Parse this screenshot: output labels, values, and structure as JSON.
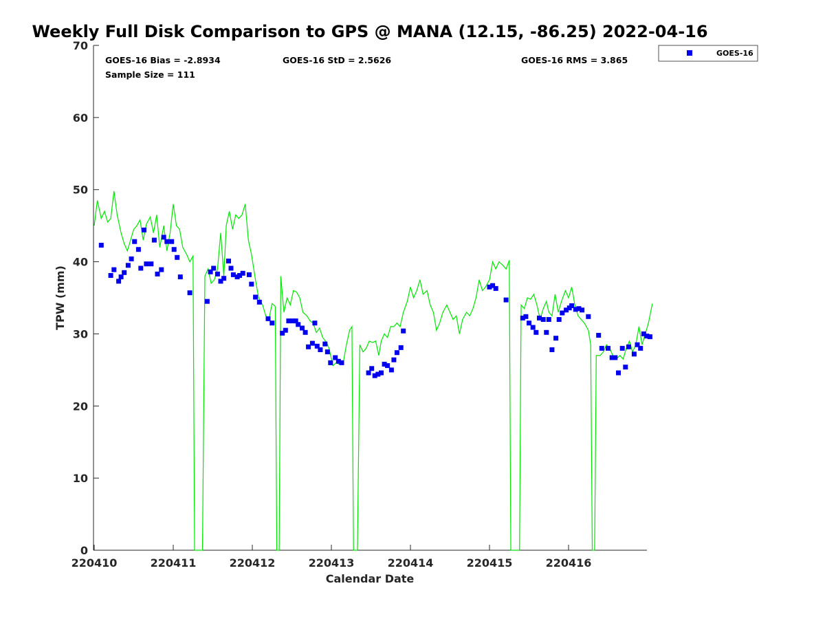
{
  "chart_data": {
    "type": "scatter",
    "title": "Weekly Full Disk Comparison to GPS @ MANA (12.15, -86.25) 2022-04-16",
    "xlabel": "Calendar Date",
    "ylabel": "TPW (mm)",
    "xlim": [
      220410,
      220417
    ],
    "ylim": [
      0,
      70
    ],
    "x_ticks": [
      220410,
      220411,
      220412,
      220413,
      220414,
      220415,
      220416
    ],
    "y_ticks": [
      0,
      10,
      20,
      30,
      40,
      50,
      60,
      70
    ],
    "grid": false,
    "legend": "outside-top-right",
    "stats": {
      "bias": "GOES-16 Bias = -2.8934",
      "std": "GOES-16 StD = 2.5626",
      "rms": "GOES-16 RMS = 3.865",
      "sample": "Sample Size = 111"
    },
    "colors": {
      "goes": "#0000ee",
      "gps": "#00e600",
      "axis": "#262626"
    },
    "series": [
      {
        "name": "GOES-16",
        "marker": "square",
        "points": [
          [
            220410.09,
            42.3
          ],
          [
            220410.21,
            38.1
          ],
          [
            220410.25,
            38.9
          ],
          [
            220410.31,
            37.3
          ],
          [
            220410.34,
            37.9
          ],
          [
            220410.38,
            38.5
          ],
          [
            220410.43,
            39.5
          ],
          [
            220410.47,
            40.4
          ],
          [
            220410.51,
            42.8
          ],
          [
            220410.56,
            41.7
          ],
          [
            220410.59,
            39.1
          ],
          [
            220410.63,
            44.4
          ],
          [
            220410.66,
            39.7
          ],
          [
            220410.72,
            39.7
          ],
          [
            220410.76,
            43.0
          ],
          [
            220410.8,
            38.3
          ],
          [
            220410.85,
            38.9
          ],
          [
            220410.88,
            43.4
          ],
          [
            220410.92,
            42.8
          ],
          [
            220410.98,
            42.8
          ],
          [
            220411.01,
            41.7
          ],
          [
            220411.05,
            40.6
          ],
          [
            220411.09,
            37.9
          ],
          [
            220411.21,
            35.7
          ],
          [
            220411.43,
            34.5
          ],
          [
            220411.47,
            38.6
          ],
          [
            220411.51,
            39.1
          ],
          [
            220411.56,
            38.3
          ],
          [
            220411.6,
            37.3
          ],
          [
            220411.64,
            37.7
          ],
          [
            220411.7,
            40.1
          ],
          [
            220411.73,
            39.1
          ],
          [
            220411.76,
            38.2
          ],
          [
            220411.81,
            37.9
          ],
          [
            220411.84,
            38.1
          ],
          [
            220411.88,
            38.4
          ],
          [
            220411.96,
            38.2
          ],
          [
            220411.99,
            36.9
          ],
          [
            220412.04,
            35.1
          ],
          [
            220412.09,
            34.4
          ],
          [
            220412.2,
            32.1
          ],
          [
            220412.25,
            31.5
          ],
          [
            220412.38,
            30.1
          ],
          [
            220412.42,
            30.5
          ],
          [
            220412.46,
            31.8
          ],
          [
            220412.51,
            31.8
          ],
          [
            220412.55,
            31.8
          ],
          [
            220412.58,
            31.3
          ],
          [
            220412.63,
            30.8
          ],
          [
            220412.67,
            30.2
          ],
          [
            220412.71,
            28.2
          ],
          [
            220412.76,
            28.7
          ],
          [
            220412.79,
            31.5
          ],
          [
            220412.82,
            28.3
          ],
          [
            220412.86,
            27.8
          ],
          [
            220412.92,
            28.6
          ],
          [
            220412.95,
            27.5
          ],
          [
            220412.99,
            26.0
          ],
          [
            220413.05,
            26.7
          ],
          [
            220413.09,
            26.2
          ],
          [
            220413.13,
            26.0
          ],
          [
            220413.47,
            24.6
          ],
          [
            220413.51,
            25.2
          ],
          [
            220413.55,
            24.2
          ],
          [
            220413.59,
            24.4
          ],
          [
            220413.63,
            24.6
          ],
          [
            220413.67,
            25.8
          ],
          [
            220413.71,
            25.6
          ],
          [
            220413.76,
            25.0
          ],
          [
            220413.79,
            26.4
          ],
          [
            220413.83,
            27.4
          ],
          [
            220413.88,
            28.1
          ],
          [
            220413.91,
            30.4
          ],
          [
            220415.0,
            36.5
          ],
          [
            220415.04,
            36.7
          ],
          [
            220415.08,
            36.3
          ],
          [
            220415.21,
            34.7
          ],
          [
            220415.42,
            32.2
          ],
          [
            220415.46,
            32.4
          ],
          [
            220415.5,
            31.5
          ],
          [
            220415.55,
            30.9
          ],
          [
            220415.59,
            30.2
          ],
          [
            220415.63,
            32.2
          ],
          [
            220415.68,
            32.0
          ],
          [
            220415.72,
            30.2
          ],
          [
            220415.75,
            32.0
          ],
          [
            220415.79,
            27.8
          ],
          [
            220415.84,
            29.4
          ],
          [
            220415.88,
            32.0
          ],
          [
            220415.92,
            32.9
          ],
          [
            220415.97,
            33.3
          ],
          [
            220416.01,
            33.6
          ],
          [
            220416.04,
            33.9
          ],
          [
            220416.09,
            33.4
          ],
          [
            220416.13,
            33.5
          ],
          [
            220416.17,
            33.3
          ],
          [
            220416.25,
            32.4
          ],
          [
            220416.38,
            29.8
          ],
          [
            220416.42,
            28.0
          ],
          [
            220416.5,
            28.0
          ],
          [
            220416.55,
            26.7
          ],
          [
            220416.59,
            26.7
          ],
          [
            220416.63,
            24.6
          ],
          [
            220416.68,
            28.0
          ],
          [
            220416.72,
            25.4
          ],
          [
            220416.76,
            28.2
          ],
          [
            220416.83,
            27.2
          ],
          [
            220416.87,
            28.5
          ],
          [
            220416.91,
            28.0
          ],
          [
            220416.95,
            30.0
          ],
          [
            220416.99,
            29.7
          ],
          [
            220417.03,
            29.6
          ]
        ]
      },
      {
        "marker": "line",
        "points": [
          [
            220410.0,
            45.0
          ],
          [
            220410.04,
            48.5
          ],
          [
            220410.09,
            46.0
          ],
          [
            220410.13,
            47.0
          ],
          [
            220410.17,
            45.5
          ],
          [
            220410.21,
            46.0
          ],
          [
            220410.25,
            49.8
          ],
          [
            220410.29,
            46.5
          ],
          [
            220410.34,
            44.0
          ],
          [
            220410.38,
            42.5
          ],
          [
            220410.42,
            41.5
          ],
          [
            220410.46,
            43.0
          ],
          [
            220410.5,
            44.5
          ],
          [
            220410.54,
            45.0
          ],
          [
            220410.58,
            45.8
          ],
          [
            220410.62,
            43.0
          ],
          [
            220410.66,
            45.2
          ],
          [
            220410.71,
            46.2
          ],
          [
            220410.75,
            44.0
          ],
          [
            220410.79,
            46.5
          ],
          [
            220410.83,
            42.0
          ],
          [
            220410.88,
            45.0
          ],
          [
            220410.92,
            41.5
          ],
          [
            220410.96,
            44.0
          ],
          [
            220411.0,
            48.0
          ],
          [
            220411.04,
            45.0
          ],
          [
            220411.08,
            44.5
          ],
          [
            220411.12,
            42.0
          ],
          [
            220411.17,
            41.0
          ],
          [
            220411.21,
            40.0
          ],
          [
            220411.25,
            40.8
          ],
          [
            220411.27,
            0.0
          ],
          [
            220411.37,
            0.0
          ],
          [
            220411.4,
            38.0
          ],
          [
            220411.44,
            39.0
          ],
          [
            220411.48,
            37.0
          ],
          [
            220411.52,
            37.5
          ],
          [
            220411.56,
            39.0
          ],
          [
            220411.6,
            44.0
          ],
          [
            220411.64,
            38.0
          ],
          [
            220411.67,
            45.0
          ],
          [
            220411.71,
            47.0
          ],
          [
            220411.75,
            44.5
          ],
          [
            220411.79,
            46.5
          ],
          [
            220411.83,
            46.0
          ],
          [
            220411.87,
            46.5
          ],
          [
            220411.91,
            48.0
          ],
          [
            220411.95,
            43.0
          ],
          [
            220411.99,
            41.0
          ],
          [
            220412.04,
            37.5
          ],
          [
            220412.08,
            35.0
          ],
          [
            220412.13,
            34.0
          ],
          [
            220412.17,
            32.5
          ],
          [
            220412.21,
            32.0
          ],
          [
            220412.25,
            34.2
          ],
          [
            220412.29,
            33.8
          ],
          [
            220412.31,
            0.0
          ],
          [
            220412.34,
            0.0
          ],
          [
            220412.36,
            38.0
          ],
          [
            220412.4,
            33.0
          ],
          [
            220412.44,
            35.0
          ],
          [
            220412.48,
            34.0
          ],
          [
            220412.52,
            36.0
          ],
          [
            220412.56,
            35.8
          ],
          [
            220412.6,
            35.0
          ],
          [
            220412.64,
            33.0
          ],
          [
            220412.69,
            32.5
          ],
          [
            220412.73,
            31.8
          ],
          [
            220412.77,
            31.5
          ],
          [
            220412.81,
            30.2
          ],
          [
            220412.85,
            30.8
          ],
          [
            220412.89,
            29.5
          ],
          [
            220412.94,
            28.8
          ],
          [
            220412.97,
            28.0
          ],
          [
            220413.02,
            25.6
          ],
          [
            220413.06,
            26.0
          ],
          [
            220413.1,
            25.8
          ],
          [
            220413.15,
            26.0
          ],
          [
            220413.19,
            28.5
          ],
          [
            220413.23,
            30.5
          ],
          [
            220413.26,
            31.0
          ],
          [
            220413.28,
            0.0
          ],
          [
            220413.33,
            0.0
          ],
          [
            220413.36,
            28.5
          ],
          [
            220413.4,
            27.5
          ],
          [
            220413.44,
            28.0
          ],
          [
            220413.48,
            29.0
          ],
          [
            220413.52,
            28.8
          ],
          [
            220413.56,
            29.0
          ],
          [
            220413.6,
            27.0
          ],
          [
            220413.63,
            29.0
          ],
          [
            220413.67,
            30.0
          ],
          [
            220413.71,
            29.5
          ],
          [
            220413.75,
            31.0
          ],
          [
            220413.79,
            31.0
          ],
          [
            220413.83,
            31.5
          ],
          [
            220413.87,
            31.0
          ],
          [
            220413.91,
            33.0
          ],
          [
            220413.96,
            34.5
          ],
          [
            220414.0,
            36.5
          ],
          [
            220414.04,
            35.0
          ],
          [
            220414.08,
            36.0
          ],
          [
            220414.12,
            37.5
          ],
          [
            220414.16,
            35.5
          ],
          [
            220414.21,
            36.0
          ],
          [
            220414.25,
            34.0
          ],
          [
            220414.29,
            33.0
          ],
          [
            220414.33,
            30.5
          ],
          [
            220414.37,
            31.5
          ],
          [
            220414.41,
            33.0
          ],
          [
            220414.46,
            34.0
          ],
          [
            220414.5,
            33.0
          ],
          [
            220414.54,
            32.0
          ],
          [
            220414.58,
            32.5
          ],
          [
            220414.62,
            30.0
          ],
          [
            220414.66,
            32.0
          ],
          [
            220414.71,
            33.0
          ],
          [
            220414.75,
            32.5
          ],
          [
            220414.79,
            33.5
          ],
          [
            220414.83,
            35.0
          ],
          [
            220414.87,
            37.5
          ],
          [
            220414.91,
            36.0
          ],
          [
            220414.95,
            36.5
          ],
          [
            220415.0,
            37.5
          ],
          [
            220415.04,
            40.0
          ],
          [
            220415.08,
            39.0
          ],
          [
            220415.12,
            40.0
          ],
          [
            220415.17,
            39.5
          ],
          [
            220415.21,
            39.0
          ],
          [
            220415.25,
            40.2
          ],
          [
            220415.27,
            0.0
          ],
          [
            220415.38,
            0.0
          ],
          [
            220415.4,
            34.0
          ],
          [
            220415.44,
            33.5
          ],
          [
            220415.48,
            35.0
          ],
          [
            220415.52,
            34.8
          ],
          [
            220415.56,
            35.5
          ],
          [
            220415.6,
            34.0
          ],
          [
            220415.64,
            32.0
          ],
          [
            220415.68,
            33.5
          ],
          [
            220415.72,
            34.5
          ],
          [
            220415.75,
            33.0
          ],
          [
            220415.79,
            32.5
          ],
          [
            220415.83,
            35.5
          ],
          [
            220415.87,
            33.0
          ],
          [
            220415.91,
            34.5
          ],
          [
            220415.96,
            36.0
          ],
          [
            220416.0,
            35.0
          ],
          [
            220416.04,
            36.5
          ],
          [
            220416.08,
            34.0
          ],
          [
            220416.12,
            32.5
          ],
          [
            220416.16,
            32.0
          ],
          [
            220416.2,
            31.5
          ],
          [
            220416.25,
            30.5
          ],
          [
            220416.28,
            28.5
          ],
          [
            220416.3,
            0.0
          ],
          [
            220416.33,
            0.0
          ],
          [
            220416.35,
            27.0
          ],
          [
            220416.4,
            27.0
          ],
          [
            220416.44,
            27.5
          ],
          [
            220416.48,
            28.5
          ],
          [
            220416.52,
            28.0
          ],
          [
            220416.56,
            27.0
          ],
          [
            220416.6,
            26.5
          ],
          [
            220416.65,
            27.0
          ],
          [
            220416.69,
            26.5
          ],
          [
            220416.73,
            28.0
          ],
          [
            220416.77,
            29.0
          ],
          [
            220416.81,
            27.5
          ],
          [
            220416.85,
            28.5
          ],
          [
            220416.89,
            31.0
          ],
          [
            220416.93,
            28.5
          ],
          [
            220416.97,
            30.0
          ],
          [
            220417.01,
            31.5
          ],
          [
            220417.06,
            34.2
          ]
        ]
      }
    ]
  }
}
